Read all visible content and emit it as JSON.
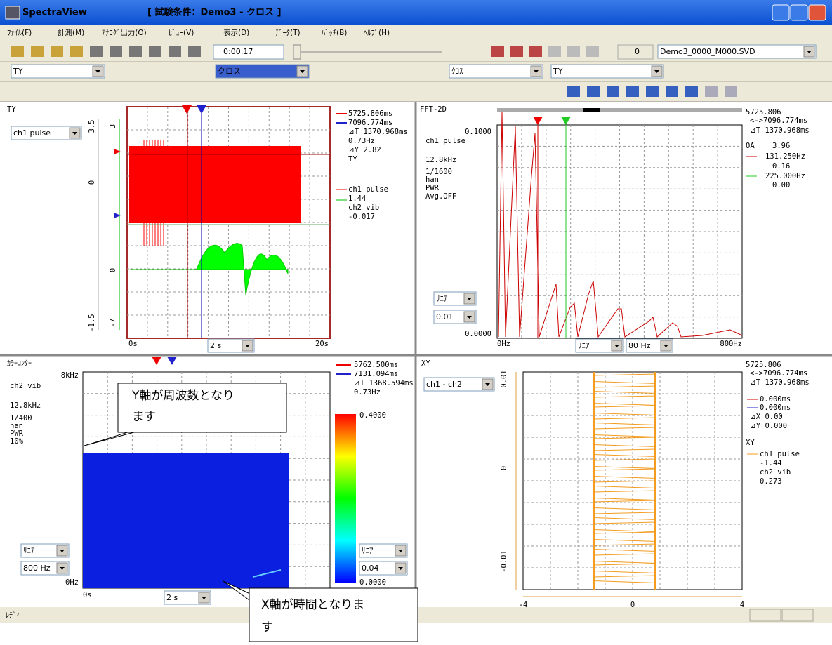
{
  "window": {
    "app": "SpectraView",
    "caption": "[ 試験条件：Demo3 - クロス ]"
  },
  "menu": [
    "ﾌｧｲﾙ(F)",
    "計測(M)",
    "ｱﾅﾛｸﾞ出力(O)",
    "ﾋﾞｭｰ(V)",
    "表示(D)",
    "ﾃﾞｰﾀ(T)",
    "ﾊﾞｯﾁ(B)",
    "ﾍﾙﾌﾟ(H)"
  ],
  "toolbar": {
    "time": "0:00:17",
    "counter": "0",
    "file": "Demo3_0000_M000.SVD",
    "view1": "TY",
    "mode1": "クロス",
    "mode2": "ｸﾛｽ",
    "view2": "TY"
  },
  "panels": {
    "ty": {
      "name": "TY",
      "channel": "ch1 pulse",
      "axis1": [
        "3.5",
        "0",
        "-1.5"
      ],
      "axis2": [
        "3",
        "0",
        "-7"
      ],
      "x_start": "0s",
      "x_end": "20s",
      "timebase": "2 s",
      "info": [
        "5725.806ms",
        "7096.774ms",
        "⊿T 1370.968ms",
        "0.73Hz",
        "⊿Y 2.82",
        "TY",
        "ch1 pulse",
        "1.44",
        "ch2 vib",
        "-0.017"
      ]
    },
    "fft": {
      "name": "FFT-2D",
      "info": [
        "5725.806",
        "<->7096.774ms",
        "⊿T 1370.968ms",
        "OA",
        "3.96",
        "131.250Hz",
        "0.16",
        "225.000Hz",
        "0.00"
      ],
      "y_top": "0.1000",
      "y_bottom": "0.0000",
      "params": [
        "ch1 pulse",
        "12.8kHz",
        "1/1600",
        "han",
        "PWR",
        "Avg.OFF"
      ],
      "scale": "ﾘﾆｱ",
      "step": "0.01",
      "x_start": "0Hz",
      "x_end": "800Hz",
      "x_scale": "ﾘﾆｱ",
      "x_step": "80 Hz"
    },
    "contour": {
      "name": "ｶﾗｰｺﾝﾀｰ",
      "y_top": "8kHz",
      "params": [
        "ch2 vib",
        "12.8kHz",
        "1/400",
        "han",
        "PWR",
        "10%"
      ],
      "info": [
        "5762.500ms",
        "7131.094ms",
        "⊿T 1368.594ms",
        "0.73Hz"
      ],
      "color_max": "0.4000",
      "color_min": "0.0000",
      "scale": "ﾘﾆｱ",
      "step": "800 Hz",
      "y_bottom": "0Hz",
      "x_start": "0s",
      "timebase": "2 s",
      "color_scale": "ﾘﾆｱ",
      "color_step": "0.04"
    },
    "xy": {
      "name": "XY",
      "pair": "ch1 - ch2",
      "info": [
        "5725.806",
        "<->7096.774ms",
        "⊿T 1370.968ms",
        "0.000ms",
        "0.000ms",
        "⊿X 0.00",
        "⊿Y 0.000",
        "XY",
        "ch1 pulse",
        "-1.44",
        "ch2 vib",
        "0.273"
      ],
      "y_axis": [
        "0.01",
        "0",
        "-0.01"
      ],
      "x_axis": [
        "-4",
        "0",
        "4"
      ]
    }
  },
  "callouts": {
    "y": [
      "Y軸が周波数となり",
      "ます"
    ],
    "x": [
      "X軸が時間となりま",
      "す"
    ]
  },
  "status": "ﾚﾃﾞｨ"
}
